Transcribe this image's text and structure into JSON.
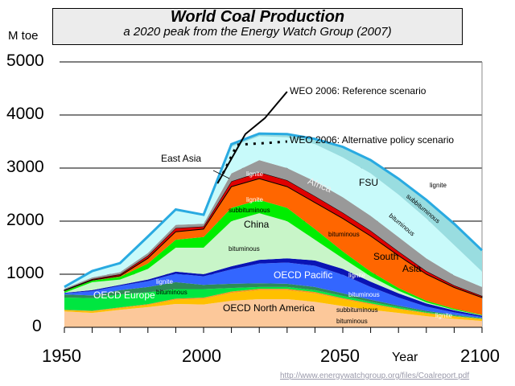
{
  "title": "World Coal Production",
  "subtitle": "a 2020 peak from the Energy Watch Group (2007)",
  "source_url": "http://www.energywatchgroup.org/files/Coalreport.pdf",
  "chart_data": {
    "type": "area",
    "stacked": true,
    "ylabel": "M toe",
    "xlabel": "Year",
    "xlim": [
      1950,
      2100
    ],
    "ylim": [
      0,
      5000
    ],
    "grid": "horizontal",
    "x_tick_labels": [
      "1950",
      "2000",
      "2050",
      "2100"
    ],
    "y_tick_labels": [
      "0",
      "1000",
      "2000",
      "3000",
      "4000",
      "5000"
    ],
    "x": [
      1950,
      1960,
      1970,
      1980,
      1990,
      2000,
      2010,
      2020,
      2030,
      2040,
      2050,
      2060,
      2070,
      2080,
      2090,
      2100
    ],
    "series": [
      {
        "region": "OECD North America",
        "grade": "bituminous",
        "color": "#fcc89a",
        "values": [
          300,
          270,
          330,
          380,
          440,
          430,
          500,
          530,
          530,
          480,
          400,
          330,
          270,
          210,
          160,
          120
        ]
      },
      {
        "region": "OECD North America",
        "grade": "subbituminous",
        "color": "#ffc000",
        "values": [
          20,
          30,
          30,
          40,
          80,
          110,
          150,
          170,
          170,
          160,
          130,
          100,
          70,
          50,
          40,
          30
        ]
      },
      {
        "region": "OECD North America",
        "grade": "lignite",
        "color": "#f7941d",
        "values": [
          10,
          10,
          15,
          15,
          20,
          20,
          25,
          25,
          25,
          25,
          20,
          20,
          15,
          15,
          10,
          10
        ]
      },
      {
        "region": "OECD Europe",
        "grade": "bituminous",
        "color": "#00e640",
        "values": [
          230,
          240,
          245,
          225,
          180,
          160,
          65,
          35,
          35,
          35,
          40,
          30,
          25,
          15,
          10,
          8
        ]
      },
      {
        "region": "OECD Europe",
        "grade": "lignite",
        "color": "#2e8b57",
        "values": [
          60,
          50,
          80,
          100,
          130,
          80,
          80,
          70,
          60,
          60,
          50,
          40,
          30,
          20,
          15,
          7
        ]
      },
      {
        "region": "OECD Pacific",
        "grade": "bituminous",
        "color": "#3366ff",
        "values": [
          20,
          80,
          80,
          110,
          160,
          160,
          270,
          370,
          400,
          400,
          350,
          240,
          150,
          80,
          45,
          20
        ]
      },
      {
        "region": "OECD Pacific",
        "grade": "lignite",
        "color": "#0a14b4",
        "values": [
          10,
          20,
          20,
          30,
          40,
          40,
          60,
          70,
          80,
          100,
          110,
          100,
          80,
          60,
          40,
          25
        ]
      },
      {
        "region": "China",
        "grade": "bituminous",
        "color": "#c8f5c8",
        "values": [
          0,
          150,
          100,
          200,
          450,
          500,
          850,
          880,
          700,
          390,
          200,
          100,
          50,
          20,
          10,
          5
        ]
      },
      {
        "region": "China",
        "grade": "subbituminous / lignite",
        "color": "#00ee00",
        "values": [
          30,
          30,
          50,
          100,
          150,
          200,
          250,
          250,
          250,
          200,
          130,
          90,
          50,
          30,
          20,
          10
        ]
      },
      {
        "region": "South Asia",
        "grade": "bituminous",
        "color": "#ff6600",
        "values": [
          10,
          10,
          20,
          100,
          150,
          150,
          400,
          400,
          400,
          500,
          620,
          670,
          610,
          500,
          400,
          325
        ]
      },
      {
        "region": "East Asia",
        "grade": "lignite",
        "color": "#e00000",
        "values": [
          15,
          20,
          30,
          50,
          70,
          50,
          100,
          120,
          120,
          120,
          110,
          100,
          80,
          60,
          40,
          30
        ]
      },
      {
        "region": "Africa",
        "grade": "",
        "color": "#999999",
        "values": [
          25,
          30,
          40,
          50,
          60,
          50,
          150,
          230,
          230,
          280,
          290,
          280,
          270,
          240,
          190,
          170
        ]
      },
      {
        "region": "FSU",
        "grade": "bituminous",
        "color": "#c8fafa",
        "values": [
          20,
          110,
          160,
          300,
          270,
          150,
          500,
          450,
          580,
          700,
          750,
          800,
          800,
          750,
          570,
          290
        ]
      },
      {
        "region": "FSU",
        "grade": "subbituminous / lignite",
        "color": "#99dde0",
        "values": [
          10,
          10,
          10,
          10,
          20,
          20,
          50,
          50,
          60,
          100,
          200,
          250,
          300,
          350,
          400,
          400
        ]
      }
    ],
    "scenarios": [
      {
        "name": "WEO 2006: Reference scenario",
        "style": "solid",
        "x": [
          2005,
          2015,
          2022,
          2030
        ],
        "y": [
          2710,
          3640,
          3940,
          4440
        ]
      },
      {
        "name": "WEO 2006: Alternative policy scenario",
        "style": "dotted",
        "x": [
          2007,
          2012,
          2022,
          2030
        ],
        "y": [
          2900,
          3440,
          3470,
          3500
        ]
      }
    ],
    "annotations": {
      "east_asia": "East Asia",
      "africa": "Africa",
      "fsu": "FSU",
      "china": "China",
      "south": "South",
      "asia": "Asia",
      "oecd_pacific": "OECD Pacific",
      "oecd_europe": "OECD Europe",
      "oecd_na": "OECD North America",
      "lignite": "lignite",
      "subbituminous": "subbituminous",
      "bituminous": "bituminous"
    }
  }
}
